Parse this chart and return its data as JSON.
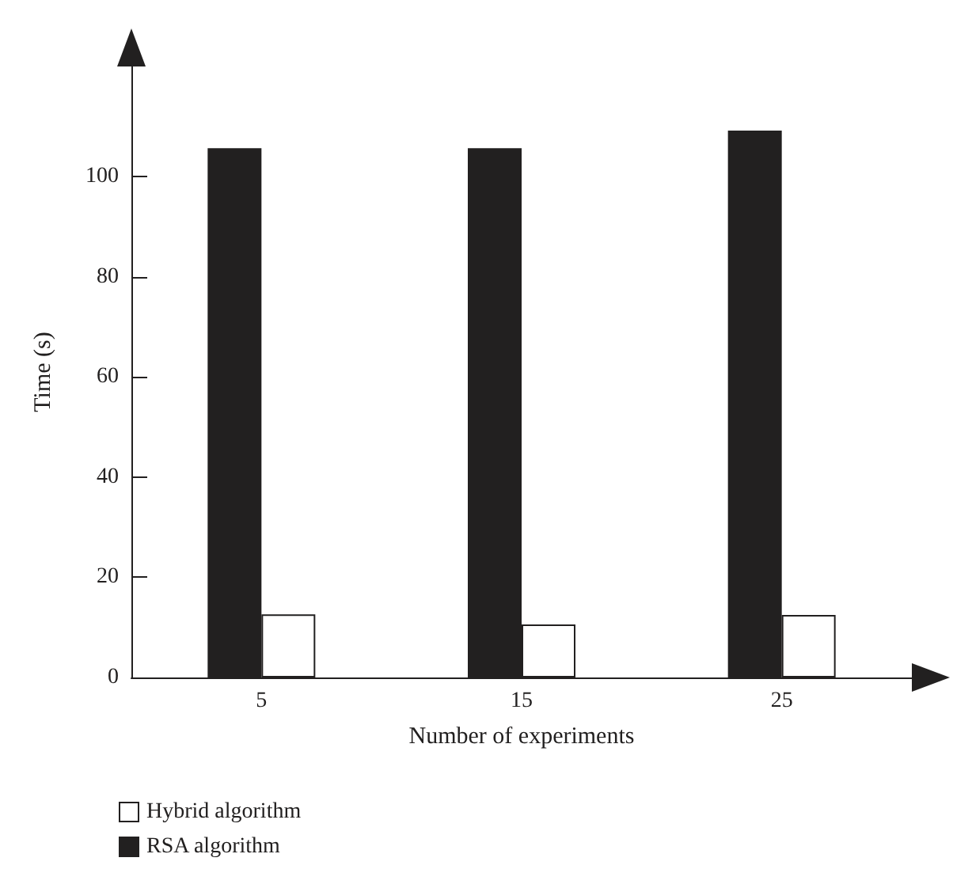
{
  "chart_data": {
    "type": "bar",
    "xlabel": "Number of experiments",
    "ylabel": "Time (s)",
    "categories": [
      "5",
      "15",
      "25"
    ],
    "series": [
      {
        "name": "RSA algorithm",
        "color": "#222020",
        "values": [
          105.7,
          105.7,
          109.2
        ]
      },
      {
        "name": "Hybrid algorithm",
        "color": "#ffffff",
        "values": [
          12.6,
          10.6,
          12.5
        ]
      }
    ],
    "ylim": [
      0,
      122
    ],
    "yticks": [
      0,
      20,
      40,
      60,
      80,
      100
    ],
    "grid": false,
    "legend": "bottom left"
  }
}
